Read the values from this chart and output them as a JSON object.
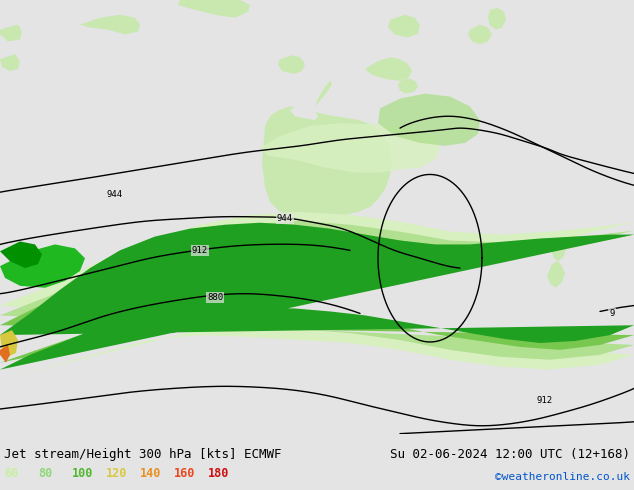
{
  "title_left": "Jet stream/Height 300 hPa [kts] ECMWF",
  "title_right": "Su 02-06-2024 12:00 UTC (12+168)",
  "credit": "©weatheronline.co.uk",
  "legend_values": [
    "60",
    "80",
    "100",
    "120",
    "140",
    "160",
    "180"
  ],
  "legend_colors": [
    "#c8f0a0",
    "#90d878",
    "#50b830",
    "#d8c840",
    "#e89020",
    "#e84820",
    "#cc1010"
  ],
  "bg_color": "#e4e4e4",
  "land_color": "#c8e8b0",
  "ocean_color": "#e4e4e4",
  "title_fontsize": 9,
  "credit_color": "#0055cc",
  "bottom_bar_color": "#e8e8e8",
  "wind_colors": {
    "60": "#d8f0c0",
    "80": "#b0e090",
    "100": "#78c850",
    "120": "#20a020",
    "140": "#d8d030",
    "160": "#e89020",
    "180": "#dd2222"
  },
  "contour_color": "#000000",
  "contour_lw": 1.0
}
